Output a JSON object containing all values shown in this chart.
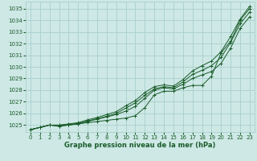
{
  "background_color": "#cde8e5",
  "grid_color": "#aacfcc",
  "line_color": "#1a5c2a",
  "text_color": "#1a5c2a",
  "xlabel": "Graphe pression niveau de la mer (hPa)",
  "ylim": [
    1024.4,
    1035.6
  ],
  "xlim": [
    -0.5,
    23.5
  ],
  "yticks": [
    1025,
    1026,
    1027,
    1028,
    1029,
    1030,
    1031,
    1032,
    1033,
    1034,
    1035
  ],
  "xticks": [
    0,
    1,
    2,
    3,
    4,
    5,
    6,
    7,
    8,
    9,
    10,
    11,
    12,
    13,
    14,
    15,
    16,
    17,
    18,
    19,
    20,
    21,
    22,
    23
  ],
  "series1": [
    1024.6,
    1024.8,
    1025.0,
    1024.9,
    1025.0,
    1025.1,
    1025.2,
    1025.3,
    1025.4,
    1025.5,
    1025.6,
    1025.8,
    1026.5,
    1027.6,
    1027.9,
    1027.9,
    1028.2,
    1028.4,
    1028.4,
    1029.2,
    1031.2,
    1032.2,
    1034.0,
    1035.0
  ],
  "series2": [
    1024.6,
    1024.8,
    1025.0,
    1024.9,
    1025.0,
    1025.1,
    1025.3,
    1025.5,
    1025.7,
    1025.9,
    1026.2,
    1026.6,
    1027.3,
    1028.0,
    1028.2,
    1028.1,
    1028.5,
    1029.0,
    1029.3,
    1029.6,
    1030.3,
    1031.6,
    1033.3,
    1034.3
  ],
  "series3": [
    1024.6,
    1024.8,
    1025.0,
    1024.95,
    1025.05,
    1025.15,
    1025.35,
    1025.55,
    1025.75,
    1026.0,
    1026.45,
    1026.9,
    1027.55,
    1028.1,
    1028.3,
    1028.2,
    1028.7,
    1029.35,
    1029.7,
    1030.1,
    1030.8,
    1032.1,
    1033.7,
    1034.7
  ],
  "series4": [
    1024.6,
    1024.8,
    1025.0,
    1025.0,
    1025.1,
    1025.2,
    1025.45,
    1025.65,
    1025.9,
    1026.15,
    1026.65,
    1027.1,
    1027.8,
    1028.3,
    1028.45,
    1028.35,
    1028.9,
    1029.65,
    1030.1,
    1030.5,
    1031.3,
    1032.6,
    1034.1,
    1035.2
  ]
}
